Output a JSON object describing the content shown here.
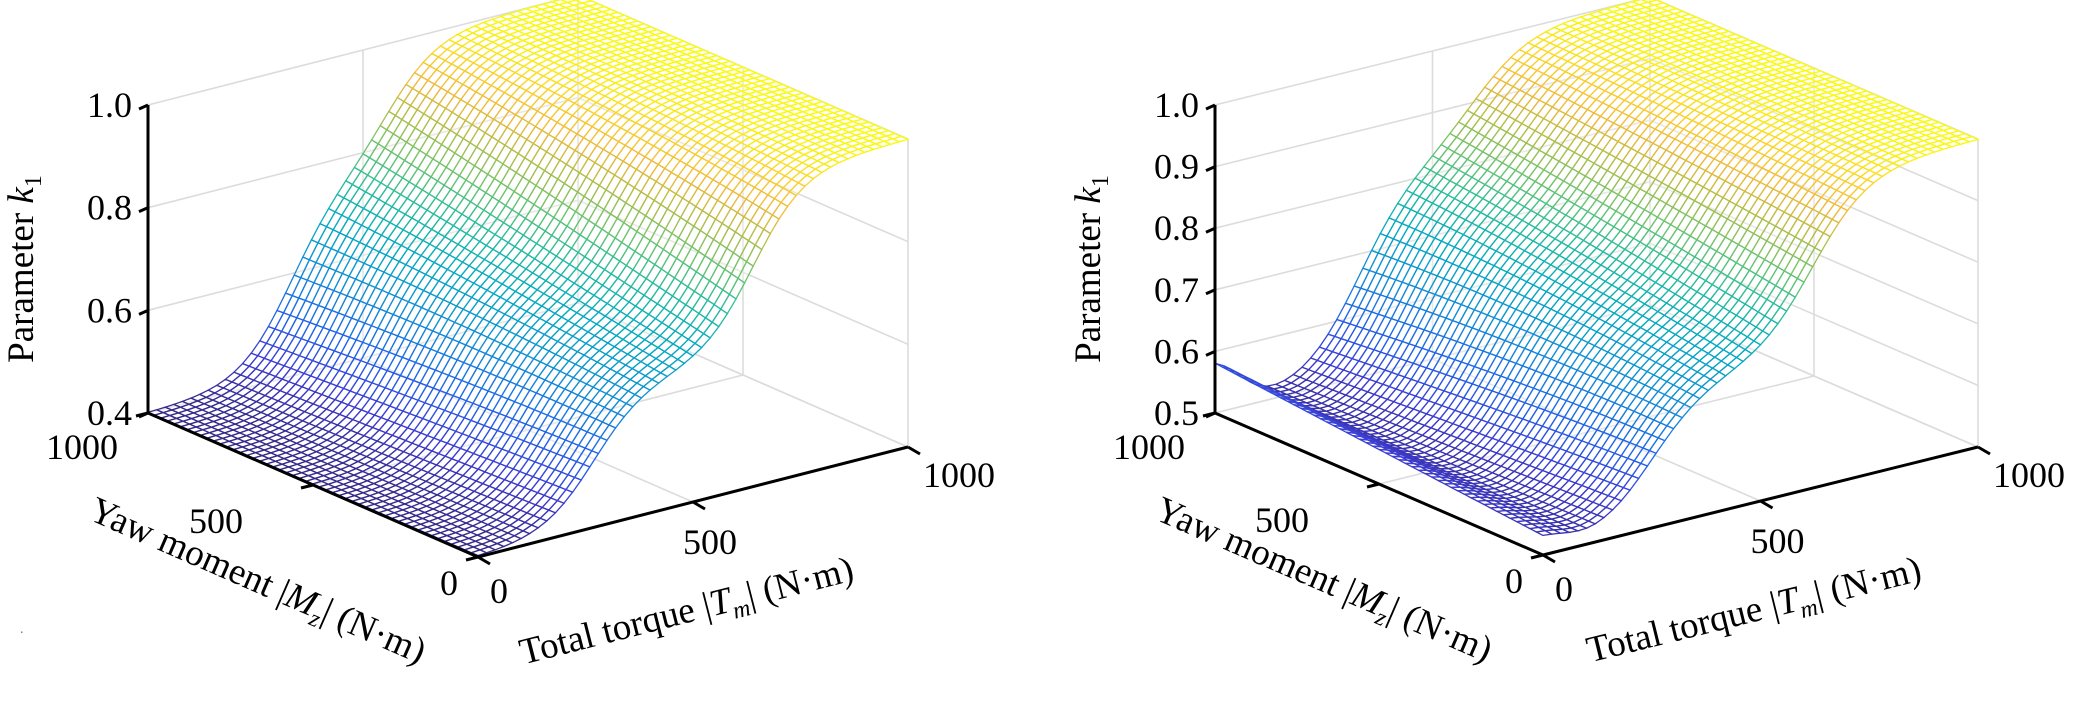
{
  "figure": {
    "panels": 2,
    "stray_mark": "."
  },
  "chart_data": [
    {
      "type": "surface",
      "panel": "left",
      "title": "",
      "xlabel": {
        "text": "Total torque ",
        "var": "T",
        "sub": "m",
        "unit": " (N·m)"
      },
      "ylabel": {
        "text": "Yaw moment ",
        "var": "M",
        "sub": "z",
        "unit": " (N·m)"
      },
      "zlabel": {
        "text": "Parameter ",
        "var": "k",
        "sub": "1"
      },
      "xlim": [
        0,
        1000
      ],
      "ylim": [
        0,
        1000
      ],
      "zlim": [
        0.4,
        1.0
      ],
      "xticks": [
        "0",
        "500",
        "1000"
      ],
      "yticks": [
        "0",
        "500",
        "1000"
      ],
      "zticks": [
        "0.4",
        "0.6",
        "0.8",
        "1.0"
      ],
      "zticks_values": [
        0.4,
        0.6,
        0.8,
        1.0
      ],
      "grid": true,
      "colormap": "parula",
      "surface_model": {
        "description": "k1 rises in two sigmoid steps along total torque; intermediate plateau level and step locations depend on yaw moment",
        "low_value": 0.4,
        "high_value": 1.0,
        "mid_value_at_Mz0": 0.66,
        "mid_value_at_Mz1000": 0.75,
        "step1_Tm_at_Mz0": 270,
        "step1_Tm_at_Mz1000": 330,
        "step2_Tm_at_Mz0": 640,
        "step2_Tm_at_Mz1000": 560,
        "step_width": 60
      },
      "sample_points": [
        {
          "Tm": 0,
          "Mz": 1000,
          "k1": 0.4
        },
        {
          "Tm": 0,
          "Mz": 0,
          "k1": 0.4
        },
        {
          "Tm": 450,
          "Mz": 0,
          "k1": 0.66
        },
        {
          "Tm": 450,
          "Mz": 1000,
          "k1": 0.75
        },
        {
          "Tm": 1000,
          "Mz": 0,
          "k1": 1.0
        },
        {
          "Tm": 1000,
          "Mz": 1000,
          "k1": 1.0
        }
      ]
    },
    {
      "type": "surface",
      "panel": "right",
      "title": "",
      "xlabel": {
        "text": "Total torque ",
        "var": "T",
        "sub": "m",
        "unit": " (N·m)"
      },
      "ylabel": {
        "text": "Yaw moment ",
        "var": "M",
        "sub": "z",
        "unit": " (N·m)"
      },
      "zlabel": {
        "text": "Parameter ",
        "var": "k",
        "sub": "1"
      },
      "xlim": [
        0,
        1000
      ],
      "ylim": [
        0,
        1000
      ],
      "zlim": [
        0.5,
        1.0
      ],
      "xticks": [
        "0",
        "500",
        "1000"
      ],
      "yticks": [
        "0",
        "500",
        "1000"
      ],
      "zticks": [
        "0.5",
        "0.6",
        "0.7",
        "0.8",
        "0.9",
        "1.0"
      ],
      "zticks_values": [
        0.5,
        0.6,
        0.7,
        0.8,
        0.9,
        1.0
      ],
      "grid": true,
      "colormap": "parula",
      "surface_model": {
        "description": "k1 starts near 0.59, dips toward 0.5 at low torque, then rises in two sigmoid steps along total torque",
        "low_value": 0.5,
        "edge_value_at_Tm0": 0.59,
        "high_value": 1.0,
        "mid_value_at_Mz0": 0.72,
        "mid_value_at_Mz1000": 0.82,
        "step1_Tm_at_Mz0": 250,
        "step1_Tm_at_Mz1000": 330,
        "step2_Tm_at_Mz0": 620,
        "step2_Tm_at_Mz1000": 600,
        "step_width": 65
      },
      "sample_points": [
        {
          "Tm": 0,
          "Mz": 1000,
          "k1": 0.59
        },
        {
          "Tm": 150,
          "Mz": 1000,
          "k1": 0.5
        },
        {
          "Tm": 450,
          "Mz": 0,
          "k1": 0.72
        },
        {
          "Tm": 450,
          "Mz": 1000,
          "k1": 0.82
        },
        {
          "Tm": 1000,
          "Mz": 0,
          "k1": 1.0
        },
        {
          "Tm": 1000,
          "Mz": 1000,
          "k1": 1.0
        }
      ]
    }
  ]
}
